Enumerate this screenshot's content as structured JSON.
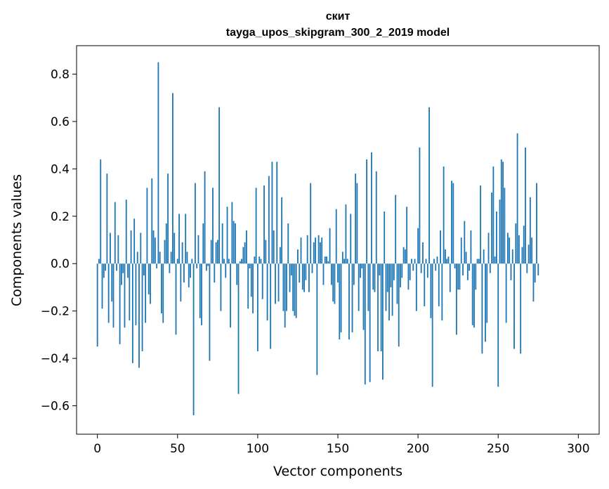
{
  "chart_data": {
    "type": "bar",
    "title": "скит",
    "subtitle": "tayga_upos_skipgram_300_2_2019 model",
    "xlabel": "Vector components",
    "ylabel": "Components values",
    "xlim": [
      -13,
      313
    ],
    "ylim": [
      -0.72,
      0.92
    ],
    "xticks": [
      0,
      50,
      100,
      150,
      200,
      250,
      300
    ],
    "yticks": [
      -0.6,
      -0.4,
      -0.2,
      0.0,
      0.2,
      0.4,
      0.6,
      0.8
    ],
    "xtick_labels": [
      "0",
      "50",
      "100",
      "150",
      "200",
      "250",
      "300"
    ],
    "ytick_labels": [
      "−0.6",
      "−0.4",
      "−0.2",
      "0.0",
      "0.2",
      "0.4",
      "0.6",
      "0.8"
    ],
    "bar_color": "#1f77b4",
    "grid": false,
    "legend": "none",
    "values": [
      -0.35,
      0.02,
      0.44,
      -0.19,
      -0.06,
      -0.03,
      0.38,
      -0.25,
      0.13,
      -0.16,
      -0.27,
      0.26,
      -0.03,
      0.12,
      -0.34,
      -0.09,
      -0.04,
      -0.27,
      0.27,
      -0.06,
      -0.24,
      0.14,
      -0.42,
      0.19,
      -0.26,
      0.05,
      -0.44,
      0.13,
      -0.37,
      -0.05,
      -0.25,
      0.32,
      -0.13,
      -0.17,
      0.36,
      0.14,
      0.11,
      -0.02,
      0.85,
      0.05,
      -0.21,
      -0.25,
      0.1,
      0.17,
      0.38,
      -0.04,
      0.05,
      0.72,
      0.13,
      -0.3,
      0.02,
      0.21,
      -0.16,
      0.09,
      -0.08,
      0.21,
      0.05,
      -0.1,
      -0.06,
      0.02,
      -0.64,
      0.34,
      -0.02,
      0.12,
      -0.23,
      -0.26,
      0.17,
      0.39,
      -0.03,
      -0.01,
      -0.41,
      0.1,
      0.32,
      -0.08,
      0.09,
      0.1,
      0.66,
      -0.2,
      0.17,
      0.02,
      -0.06,
      0.24,
      0.02,
      -0.27,
      0.26,
      0.18,
      0.17,
      -0.09,
      -0.55,
      0.01,
      0.02,
      0.07,
      0.09,
      0.14,
      -0.19,
      -0.02,
      -0.14,
      -0.21,
      0.03,
      0.32,
      -0.37,
      0.03,
      0.02,
      -0.15,
      0.33,
      0.1,
      -0.24,
      0.37,
      -0.36,
      0.43,
      0.14,
      -0.17,
      0.43,
      -0.16,
      0.07,
      0.28,
      -0.2,
      -0.27,
      -0.2,
      0.17,
      -0.12,
      -0.05,
      -0.2,
      -0.22,
      -0.23,
      0.06,
      -0.08,
      0.11,
      -0.11,
      -0.12,
      -0.07,
      0.12,
      -0.12,
      0.34,
      -0.04,
      0.09,
      0.11,
      -0.47,
      0.12,
      0.09,
      0.11,
      -0.09,
      0.03,
      0.03,
      0.01,
      0.15,
      -0.09,
      -0.16,
      -0.17,
      0.23,
      -0.08,
      -0.32,
      -0.29,
      0.05,
      0.02,
      0.25,
      0.02,
      -0.32,
      0.21,
      -0.29,
      -0.09,
      0.38,
      0.34,
      -0.2,
      -0.06,
      -0.02,
      -0.28,
      -0.51,
      0.44,
      -0.2,
      -0.5,
      0.47,
      -0.11,
      -0.12,
      0.39,
      -0.37,
      -0.05,
      -0.37,
      -0.49,
      0.22,
      -0.2,
      -0.12,
      -0.24,
      -0.1,
      -0.22,
      -0.07,
      0.29,
      -0.17,
      -0.35,
      -0.1,
      -0.06,
      0.07,
      0.06,
      0.24,
      -0.11,
      -0.07,
      0.02,
      -0.03,
      0.02,
      -0.2,
      0.15,
      0.49,
      -0.04,
      0.09,
      -0.18,
      0.02,
      -0.06,
      0.66,
      -0.23,
      -0.52,
      0.02,
      -0.03,
      0.03,
      -0.18,
      0.14,
      -0.24,
      0.41,
      0.06,
      0.02,
      0.03,
      -0.12,
      0.35,
      0.34,
      -0.02,
      -0.3,
      -0.11,
      -0.11,
      0.11,
      -0.05,
      0.18,
      0.05,
      -0.07,
      -0.03,
      0.14,
      -0.26,
      -0.27,
      -0.11,
      0.02,
      0.02,
      0.33,
      -0.38,
      0.06,
      -0.33,
      -0.25,
      0.13,
      -0.04,
      0.3,
      0.41,
      0.03,
      0.22,
      -0.52,
      0.27,
      0.44,
      0.43,
      0.32,
      -0.25,
      0.13,
      0.11,
      -0.07,
      0.06,
      -0.36,
      0.17,
      0.55,
      0.12,
      -0.38,
      0.07,
      0.16,
      0.49,
      -0.04,
      0.08,
      0.28,
      0.11,
      -0.16,
      -0.08,
      0.34,
      -0.05
    ]
  }
}
